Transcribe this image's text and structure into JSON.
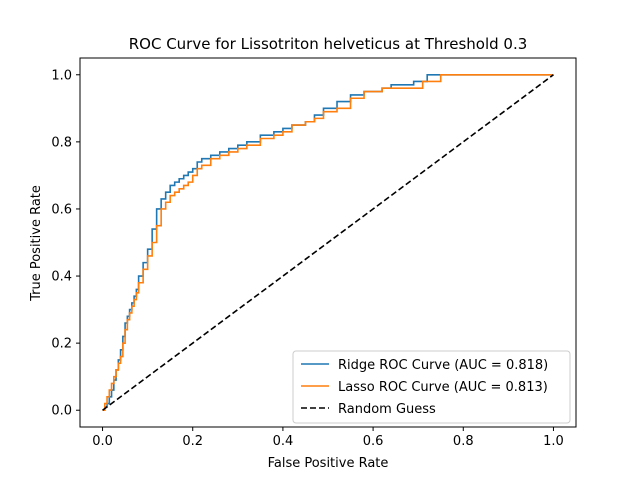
{
  "chart_data": {
    "type": "line",
    "title": "ROC Curve for Lissotriton helveticus at Threshold 0.3",
    "xlabel": "False Positive Rate",
    "ylabel": "True Positive Rate",
    "xlim": [
      -0.05,
      1.05
    ],
    "ylim": [
      -0.05,
      1.05
    ],
    "xticks": [
      "0.0",
      "0.2",
      "0.4",
      "0.6",
      "0.8",
      "1.0"
    ],
    "yticks": [
      "0.0",
      "0.2",
      "0.4",
      "0.6",
      "0.8",
      "1.0"
    ],
    "grid": false,
    "legend_position": "lower-right",
    "series": [
      {
        "name": "Ridge ROC Curve (AUC = 0.818)",
        "color": "#1f77b4",
        "style": "solid",
        "x": [
          0.0,
          0.005,
          0.01,
          0.015,
          0.02,
          0.025,
          0.03,
          0.035,
          0.04,
          0.045,
          0.05,
          0.055,
          0.06,
          0.065,
          0.07,
          0.075,
          0.08,
          0.09,
          0.1,
          0.11,
          0.12,
          0.13,
          0.14,
          0.15,
          0.16,
          0.17,
          0.18,
          0.19,
          0.2,
          0.21,
          0.22,
          0.24,
          0.26,
          0.28,
          0.3,
          0.32,
          0.35,
          0.38,
          0.4,
          0.42,
          0.45,
          0.47,
          0.49,
          0.52,
          0.55,
          0.58,
          0.62,
          0.64,
          0.67,
          0.69,
          0.72,
          0.75,
          0.8,
          1.0
        ],
        "y": [
          0.0,
          0.01,
          0.02,
          0.04,
          0.06,
          0.09,
          0.12,
          0.15,
          0.18,
          0.22,
          0.26,
          0.28,
          0.3,
          0.32,
          0.34,
          0.36,
          0.4,
          0.44,
          0.48,
          0.54,
          0.6,
          0.63,
          0.65,
          0.67,
          0.68,
          0.69,
          0.7,
          0.71,
          0.72,
          0.74,
          0.75,
          0.76,
          0.77,
          0.78,
          0.79,
          0.8,
          0.82,
          0.83,
          0.84,
          0.85,
          0.86,
          0.88,
          0.9,
          0.92,
          0.94,
          0.95,
          0.96,
          0.97,
          0.97,
          0.98,
          1.0,
          1.0,
          1.0,
          1.0
        ]
      },
      {
        "name": "Lasso ROC Curve (AUC = 0.813)",
        "color": "#ff7f0e",
        "style": "solid",
        "x": [
          0.0,
          0.005,
          0.01,
          0.015,
          0.02,
          0.025,
          0.03,
          0.035,
          0.04,
          0.045,
          0.05,
          0.055,
          0.06,
          0.065,
          0.07,
          0.075,
          0.08,
          0.09,
          0.1,
          0.11,
          0.12,
          0.13,
          0.14,
          0.15,
          0.16,
          0.17,
          0.18,
          0.19,
          0.2,
          0.21,
          0.22,
          0.24,
          0.26,
          0.28,
          0.3,
          0.32,
          0.35,
          0.38,
          0.4,
          0.42,
          0.45,
          0.47,
          0.49,
          0.52,
          0.55,
          0.58,
          0.62,
          0.64,
          0.67,
          0.71,
          0.75,
          0.8,
          1.0
        ],
        "y": [
          0.0,
          0.02,
          0.04,
          0.06,
          0.08,
          0.1,
          0.12,
          0.14,
          0.16,
          0.2,
          0.24,
          0.27,
          0.29,
          0.31,
          0.33,
          0.35,
          0.38,
          0.42,
          0.46,
          0.5,
          0.55,
          0.6,
          0.62,
          0.64,
          0.65,
          0.66,
          0.67,
          0.68,
          0.7,
          0.72,
          0.73,
          0.75,
          0.76,
          0.77,
          0.78,
          0.79,
          0.81,
          0.82,
          0.83,
          0.85,
          0.86,
          0.87,
          0.89,
          0.9,
          0.93,
          0.95,
          0.96,
          0.96,
          0.96,
          0.98,
          1.0,
          1.0,
          1.0
        ]
      },
      {
        "name": "Random Guess",
        "color": "#000000",
        "style": "dashed",
        "x": [
          0.0,
          1.0
        ],
        "y": [
          0.0,
          1.0
        ]
      }
    ]
  }
}
